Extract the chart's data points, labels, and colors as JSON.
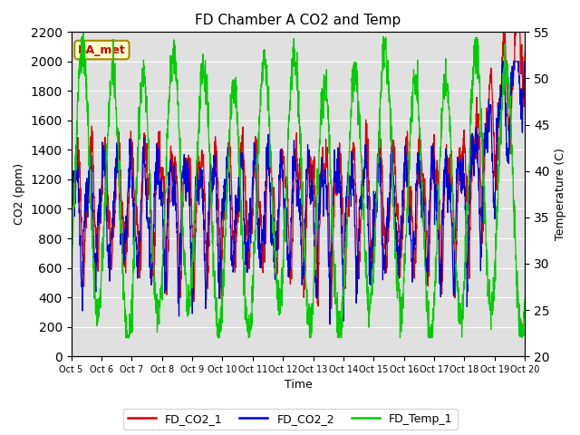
{
  "title": "FD Chamber A CO2 and Temp",
  "xlabel": "Time",
  "ylabel_left": "CO2 (ppm)",
  "ylabel_right": "Temperature (C)",
  "ylim_left": [
    0,
    2200
  ],
  "ylim_right": [
    20,
    55
  ],
  "yticks_left": [
    0,
    200,
    400,
    600,
    800,
    1000,
    1200,
    1400,
    1600,
    1800,
    2000,
    2200
  ],
  "yticks_right": [
    20,
    25,
    30,
    35,
    40,
    45,
    50,
    55
  ],
  "n_points": 2000,
  "color_co2_1": "#dd0000",
  "color_co2_2": "#0000dd",
  "color_temp": "#00cc00",
  "color_bg": "#e0e0e0",
  "label_co2_1": "FD_CO2_1",
  "label_co2_2": "FD_CO2_2",
  "label_temp": "FD_Temp_1",
  "annotation_text": "BA_met",
  "annotation_color": "#cc0000",
  "annotation_bg": "#ffffcc",
  "annotation_border": "#aa8800",
  "xtick_labels": [
    "Oct 5",
    "Oct 6",
    "Oct 7",
    "Oct 8",
    "Oct 9",
    "Oct 10",
    "Oct 11",
    "Oct 12",
    "Oct 13",
    "Oct 14",
    "Oct 15",
    "Oct 16",
    "Oct 17",
    "Oct 18",
    "Oct 19",
    "Oct 20"
  ],
  "xtick_positions": [
    0,
    1,
    2,
    3,
    4,
    5,
    6,
    7,
    8,
    9,
    10,
    11,
    12,
    13,
    14,
    15
  ],
  "linewidth": 0.9
}
